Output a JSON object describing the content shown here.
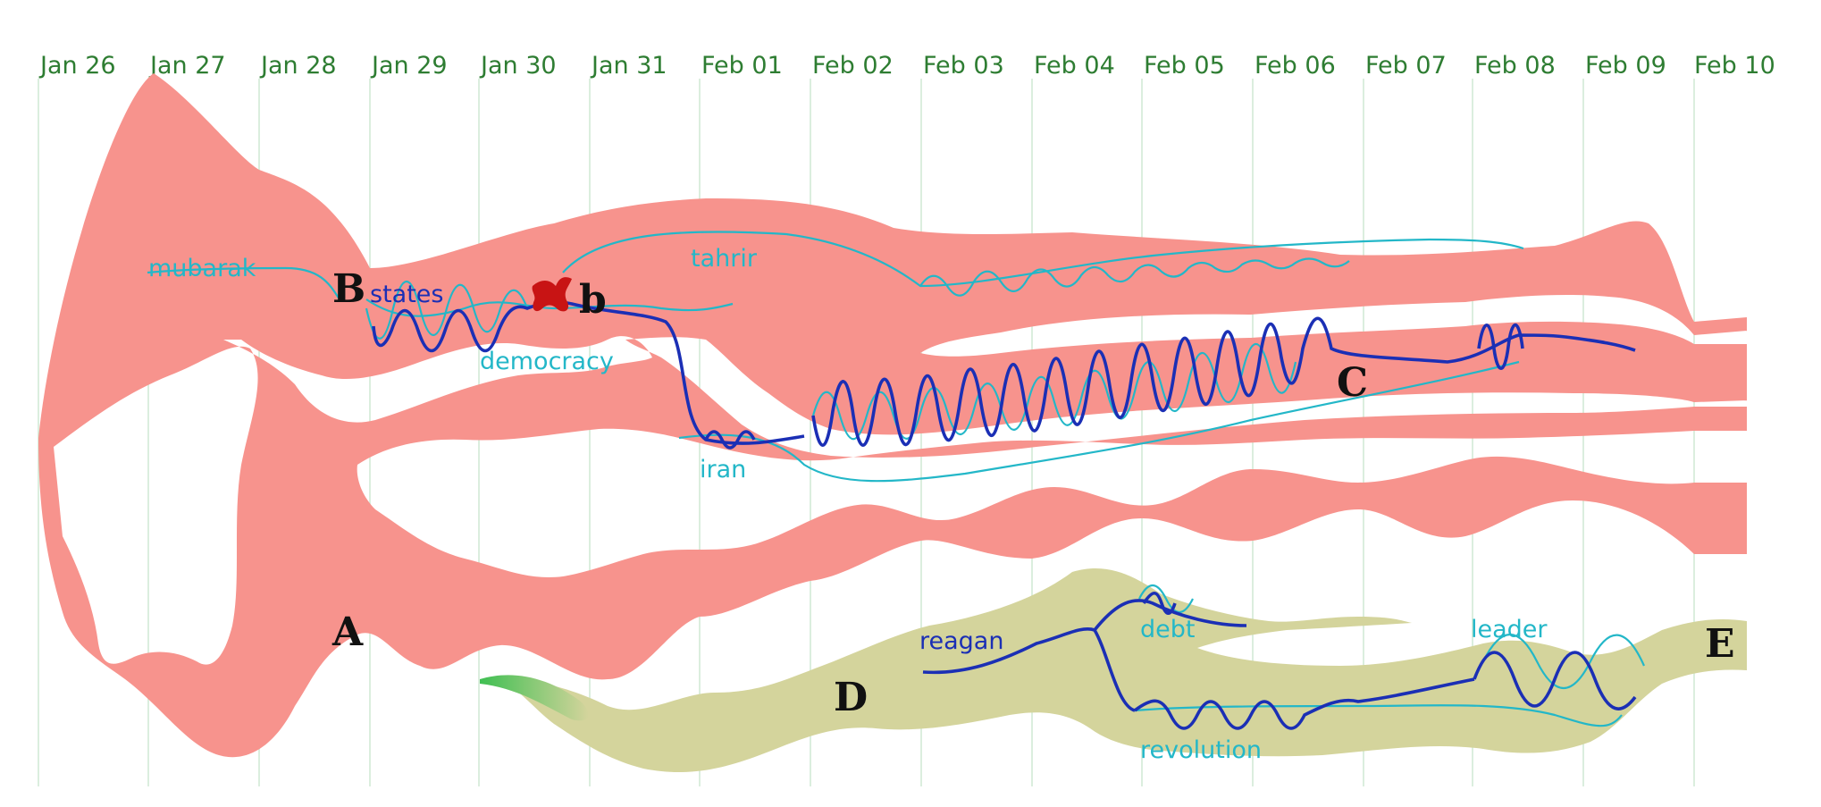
{
  "dates": [
    "Jan 26",
    "Jan 27",
    "Jan 28",
    "Jan 29",
    "Jan 30",
    "Jan 31",
    "Feb 01",
    "Feb 02",
    "Feb 03",
    "Feb 04",
    "Feb 05",
    "Feb 06",
    "Feb 07",
    "Feb 08",
    "Feb 09",
    "Feb 10"
  ],
  "terms": {
    "mubarak": "mubarak",
    "states": "states",
    "democracy": "democracy",
    "tahrir": "tahrir",
    "iran": "iran",
    "reagan": "reagan",
    "debt": "debt",
    "revolution": "revolution",
    "leader": "leader"
  },
  "markers": {
    "A": "A",
    "B": "B",
    "b": "b",
    "C": "C",
    "D": "D",
    "E": "E"
  },
  "colors": {
    "stream_main": "#f7938d",
    "stream_secondary": "#d4d49c",
    "stream_green": "#7fd17a",
    "thread_dark": "#1b2fb5",
    "thread_light": "#23b7c8",
    "merge_marker": "#c81414",
    "grid": "#cfe9d3",
    "date_text": "#2e7d32"
  }
}
